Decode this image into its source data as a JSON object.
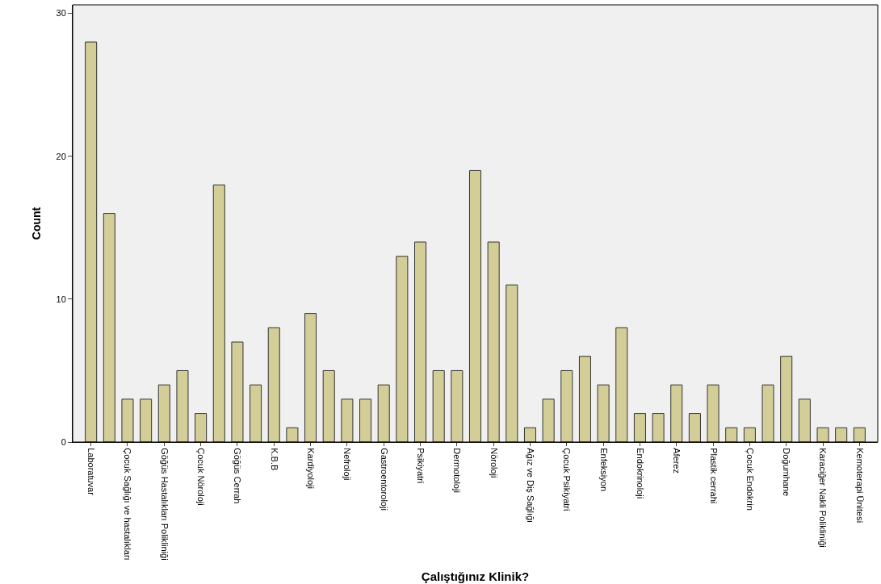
{
  "chart_data": {
    "type": "bar",
    "xlabel": "Çalıştığınız Klinik?",
    "ylabel": "Count",
    "categories": [
      "Laboratuvar",
      null,
      "Çocuk Sağlığı ve hastalıkları",
      null,
      "Göğüs Hastalıkları Polikliniği",
      null,
      "Çocuk Nöroloji",
      null,
      "Göğüs Cerrah",
      null,
      "K.B.B",
      null,
      "Kardiyoloji",
      null,
      "Nefroloji",
      null,
      "Gastroentoroloji",
      null,
      "Psikiyatri",
      null,
      "Dermotoloji",
      null,
      "Nöroloji",
      null,
      "Ağız ve Diş Sağlığı",
      null,
      "Çocuk Psikiyatri",
      null,
      "Enfeksiyon",
      null,
      "Endokrinoloji",
      null,
      "Aferez",
      null,
      "Plastik cerrahi",
      null,
      "Çocuk Endokrin",
      null,
      "Doğumhane",
      null,
      "Karaciğer Nakli Polikliniği",
      null,
      "Kemoterapi Ünitesi"
    ],
    "values": [
      28,
      16,
      3,
      3,
      4,
      5,
      2,
      18,
      7,
      4,
      8,
      1,
      9,
      5,
      3,
      3,
      4,
      13,
      14,
      5,
      5,
      19,
      14,
      11,
      1,
      3,
      5,
      6,
      4,
      8,
      2,
      2,
      4,
      2,
      4,
      1,
      1,
      4,
      6,
      3,
      1,
      1,
      1
    ],
    "color": "#d3ce98",
    "ylim": [
      0,
      30.6
    ],
    "yticks": [
      0,
      10,
      20,
      30
    ],
    "grid": false
  }
}
